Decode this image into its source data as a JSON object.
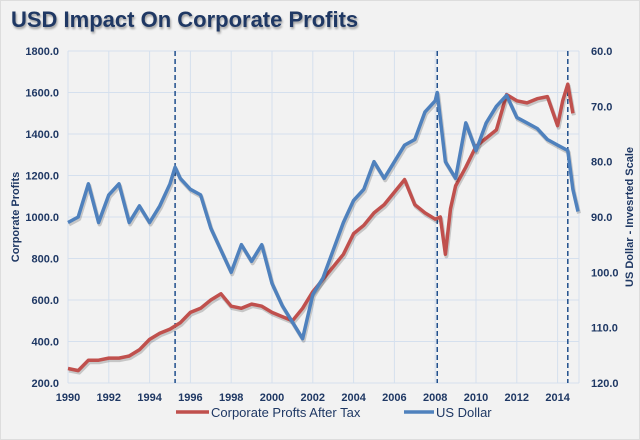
{
  "chart_data": {
    "type": "line",
    "title": "USD Impact On Corporate Profits",
    "xlabel": "",
    "ylabel": "Corporate Profits",
    "y2label": "US Dollar - Invesrted Scale",
    "xlim": [
      1990,
      2015
    ],
    "ylim": [
      200,
      1800
    ],
    "y2lim": [
      60,
      120
    ],
    "y2_inverted": true,
    "x_ticks": [
      "1990",
      "1992",
      "1994",
      "1996",
      "1998",
      "2000",
      "2002",
      "2004",
      "2006",
      "2008",
      "2010",
      "2012",
      "2014"
    ],
    "y_ticks": [
      "200.0",
      "400.0",
      "600.0",
      "800.0",
      "1000.0",
      "1200.0",
      "1400.0",
      "1600.0",
      "1800.0"
    ],
    "y2_ticks": [
      "60.0",
      "70.0",
      "80.0",
      "90.0",
      "100.0",
      "110.0",
      "120.0"
    ],
    "grid": true,
    "legend": "bottom",
    "vlines": [
      1995.25,
      2008.1,
      2014.5
    ],
    "series": [
      {
        "name": "Corporate Profts After Tax",
        "axis": "left",
        "color": "#c0504d",
        "x": [
          1990,
          1990.5,
          1991,
          1991.5,
          1992,
          1992.5,
          1993,
          1993.5,
          1994,
          1994.5,
          1995,
          1995.5,
          1996,
          1996.5,
          1997,
          1997.5,
          1998,
          1998.5,
          1999,
          1999.5,
          2000,
          2000.5,
          2001,
          2001.5,
          2002,
          2002.5,
          2003,
          2003.5,
          2004,
          2004.5,
          2005,
          2005.5,
          2006,
          2006.5,
          2007,
          2007.5,
          2008,
          2008.25,
          2008.5,
          2008.75,
          2009,
          2009.5,
          2010,
          2010.5,
          2011,
          2011.5,
          2012,
          2012.5,
          2013,
          2013.5,
          2014,
          2014.25,
          2014.5,
          2014.75
        ],
        "values": [
          270,
          260,
          310,
          310,
          320,
          320,
          330,
          360,
          410,
          440,
          460,
          490,
          540,
          560,
          600,
          630,
          570,
          560,
          580,
          570,
          540,
          520,
          500,
          560,
          640,
          700,
          760,
          820,
          920,
          960,
          1020,
          1060,
          1120,
          1180,
          1060,
          1020,
          990,
          1000,
          820,
          1040,
          1150,
          1240,
          1340,
          1380,
          1420,
          1590,
          1560,
          1550,
          1570,
          1580,
          1440,
          1560,
          1640,
          1500
        ]
      },
      {
        "name": "US Dollar",
        "axis": "right",
        "color": "#4f81bd",
        "x": [
          1990,
          1990.5,
          1991,
          1991.5,
          1992,
          1992.5,
          1993,
          1993.5,
          1994,
          1994.5,
          1995,
          1995.25,
          1995.5,
          1996,
          1996.5,
          1997,
          1997.5,
          1998,
          1998.5,
          1999,
          1999.5,
          2000,
          2000.5,
          2001,
          2001.5,
          2002,
          2002.5,
          2003,
          2003.5,
          2004,
          2004.5,
          2005,
          2005.5,
          2006,
          2006.5,
          2007,
          2007.5,
          2008,
          2008.1,
          2008.5,
          2009,
          2009.5,
          2010,
          2010.5,
          2011,
          2011.5,
          2012,
          2012.5,
          2013,
          2013.5,
          2014,
          2014.5,
          2014.75,
          2015
        ],
        "values": [
          91,
          90,
          84,
          91,
          86,
          84,
          91,
          88,
          91,
          88,
          84,
          81,
          83,
          85,
          86,
          92,
          96,
          100,
          95,
          98,
          95,
          102,
          106,
          109,
          112,
          104,
          101,
          96,
          91,
          87,
          85,
          80,
          83,
          80,
          77,
          76,
          71,
          69,
          67.5,
          80,
          83,
          73,
          78,
          73,
          70,
          68,
          72,
          73,
          74,
          76,
          77,
          78,
          85,
          89
        ]
      }
    ]
  }
}
